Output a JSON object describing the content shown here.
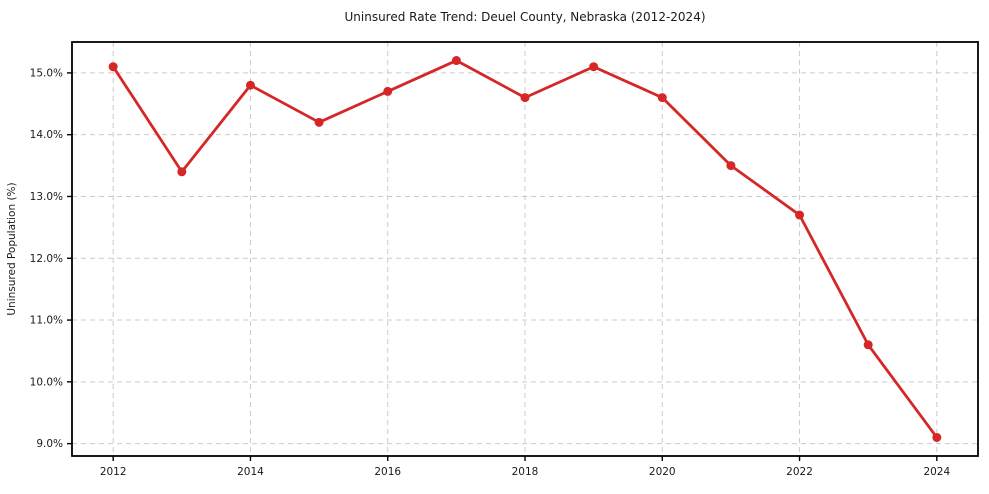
{
  "chart_data": {
    "type": "line",
    "title": "Uninsured Rate Trend: Deuel County, Nebraska (2012-2024)",
    "ylabel": "Uninsured Population (%)",
    "xlabel": "",
    "x": [
      2012,
      2013,
      2014,
      2015,
      2016,
      2017,
      2018,
      2019,
      2020,
      2021,
      2022,
      2023,
      2024
    ],
    "values": [
      15.1,
      13.4,
      14.8,
      14.2,
      14.7,
      15.2,
      14.6,
      15.1,
      14.6,
      13.5,
      12.7,
      10.6,
      9.1
    ],
    "x_tick_values": [
      2012,
      2014,
      2016,
      2018,
      2020,
      2022,
      2024
    ],
    "x_tick_labels": [
      "2012",
      "2014",
      "2016",
      "2018",
      "2020",
      "2022",
      "2024"
    ],
    "y_tick_values": [
      9,
      10,
      11,
      12,
      13,
      14,
      15
    ],
    "y_tick_labels": [
      "9.0%",
      "10.0%",
      "11.0%",
      "12.0%",
      "13.0%",
      "14.0%",
      "15.0%"
    ],
    "xlim": [
      2011.4,
      2024.6
    ],
    "ylim": [
      8.8,
      15.5
    ],
    "grid": "dashed",
    "legend_position": "none",
    "marker": "circle",
    "line_color": "#d62728",
    "grid_color": "#cccccc",
    "axis_color": "#000000"
  }
}
